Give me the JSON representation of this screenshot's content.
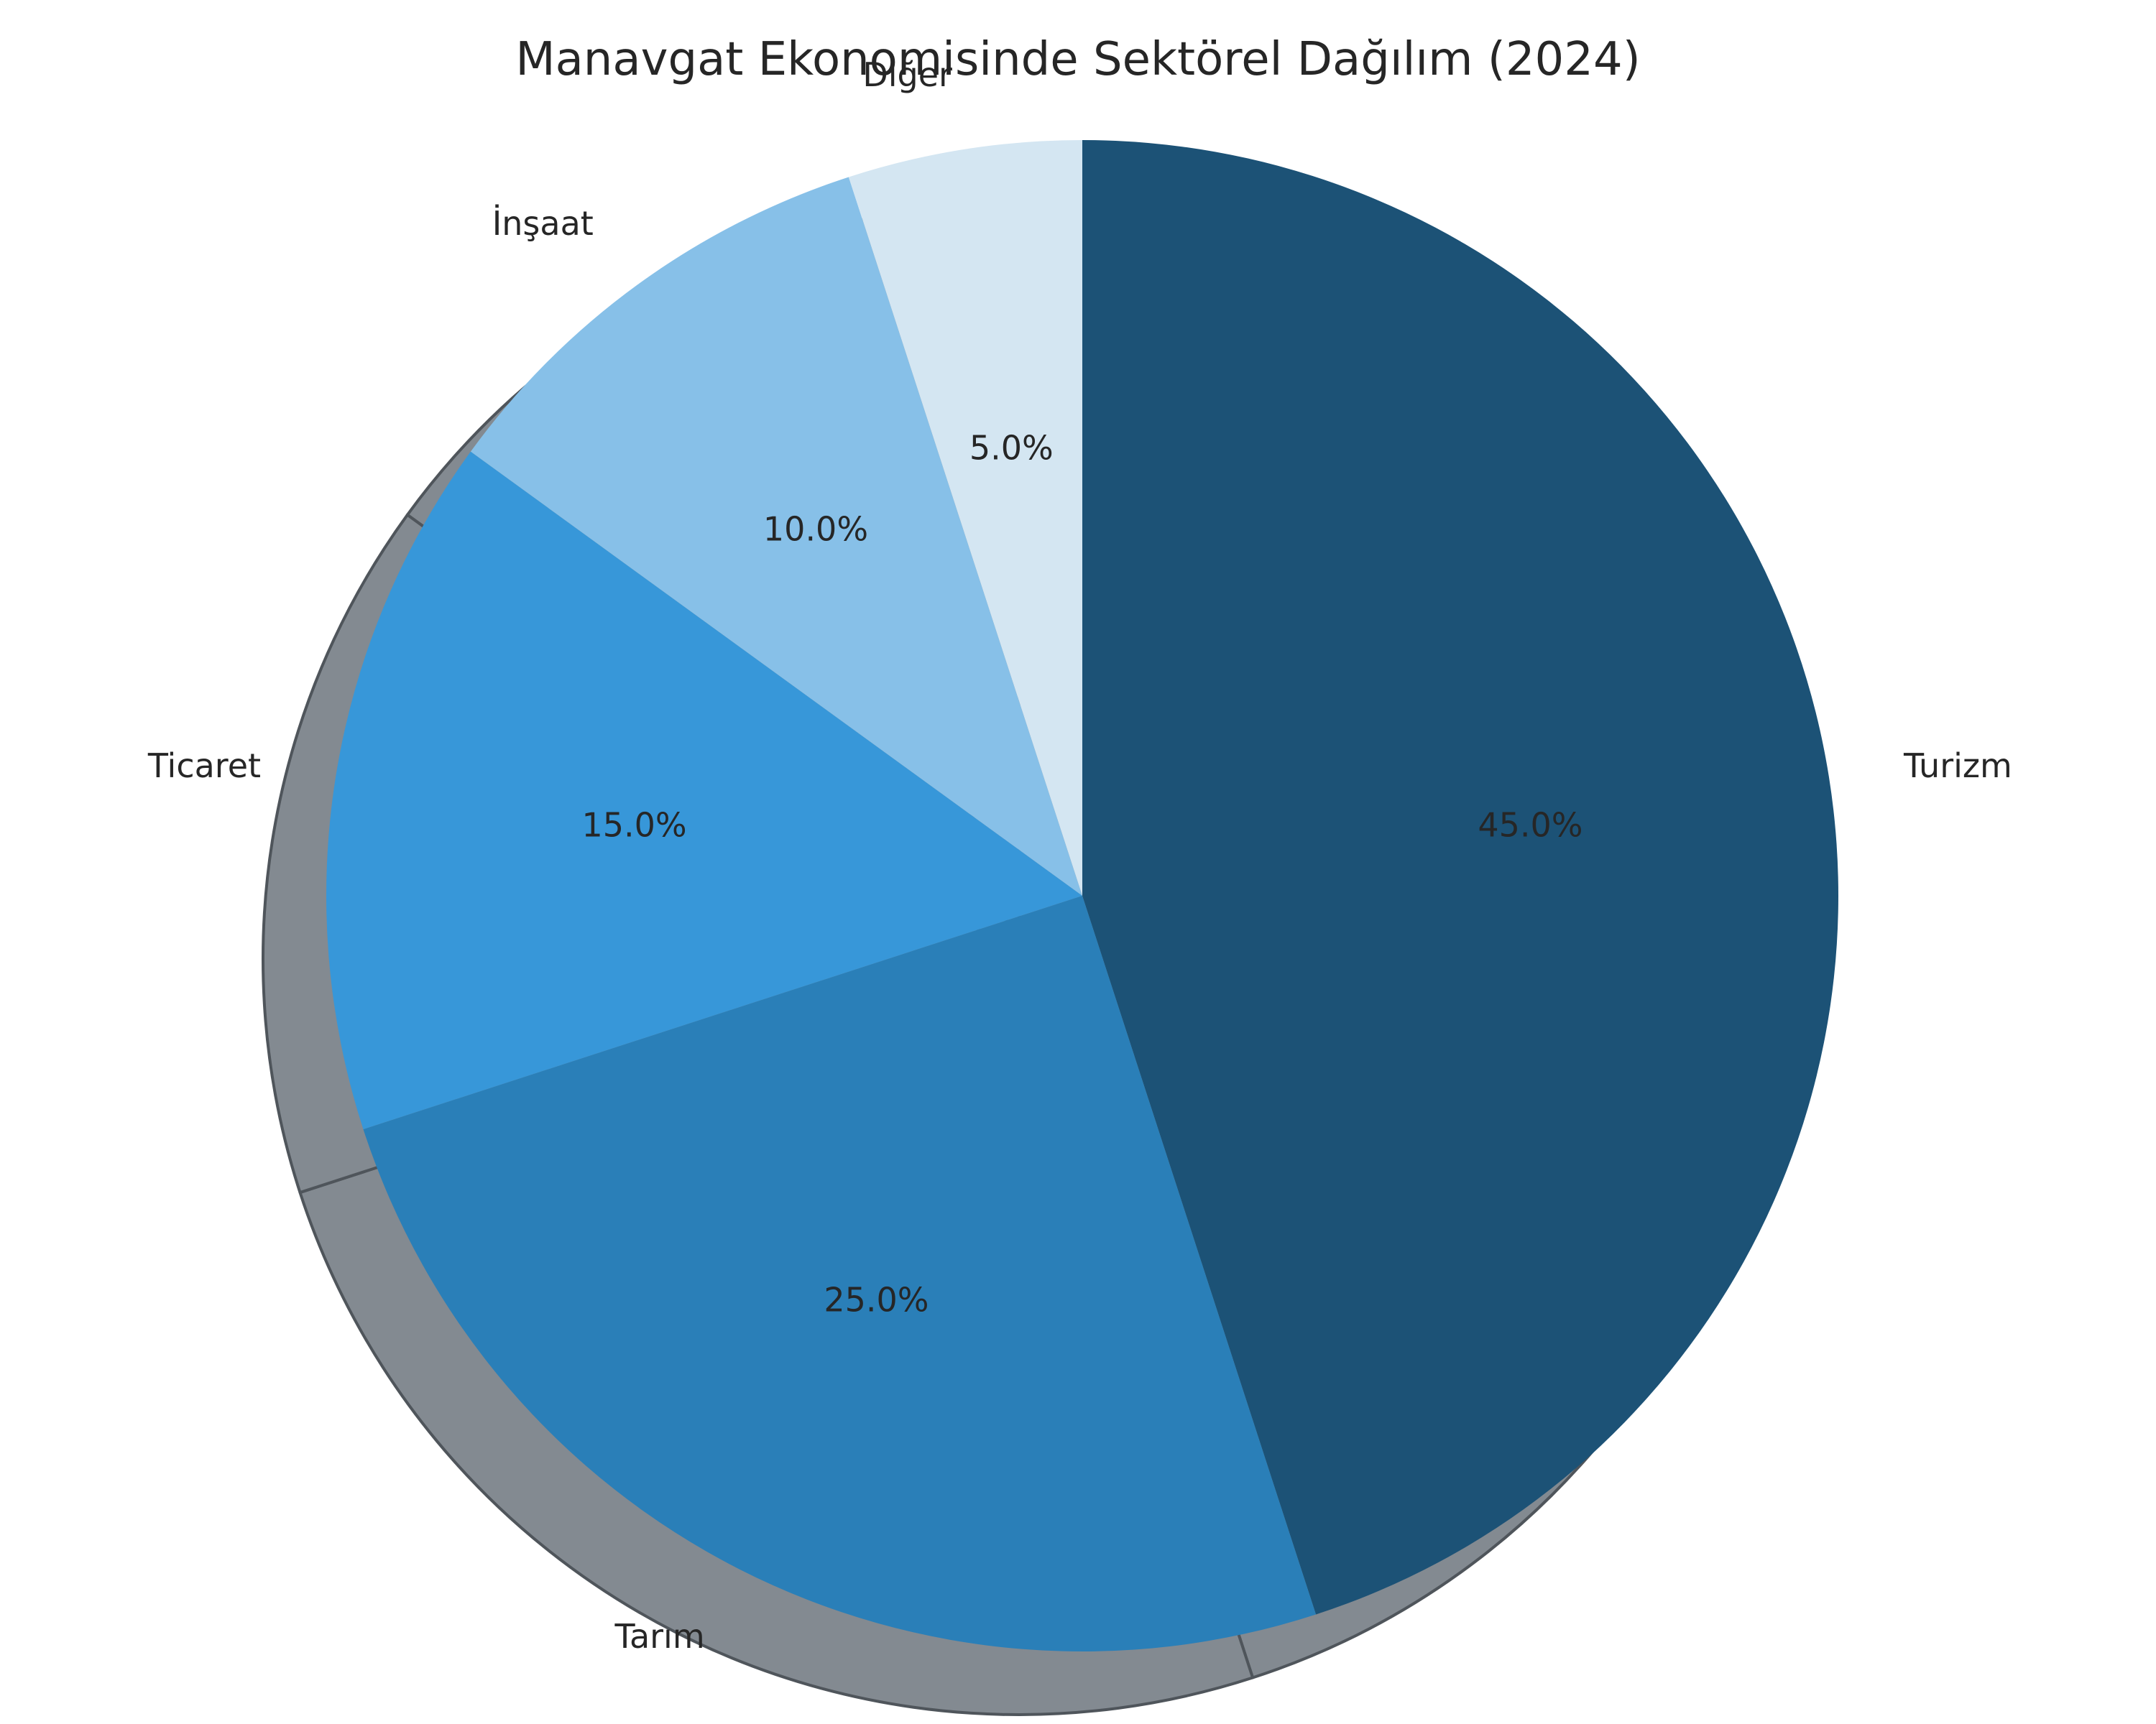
{
  "chart_data": {
    "type": "pie",
    "title": "Manavgat Ekonomisinde Sektörel Dağılım (2024)",
    "start_angle_deg": 90,
    "direction": "clockwise",
    "shadow": true,
    "slices": [
      {
        "label": "Turizm",
        "value": 45,
        "pct_label": "45.0%",
        "color": "#1c5276"
      },
      {
        "label": "Tarım",
        "value": 25,
        "pct_label": "25.0%",
        "color": "#2a7fb8"
      },
      {
        "label": "Ticaret",
        "value": 15,
        "pct_label": "15.0%",
        "color": "#3797d9"
      },
      {
        "label": "İnşaat",
        "value": 10,
        "pct_label": "10.0%",
        "color": "#87c0e8"
      },
      {
        "label": "Diğer",
        "value": 5,
        "pct_label": "5.0%",
        "color": "#d4e6f2"
      }
    ],
    "shadow_color": "#838a91",
    "shadow_edge_color": "#4f555b"
  }
}
